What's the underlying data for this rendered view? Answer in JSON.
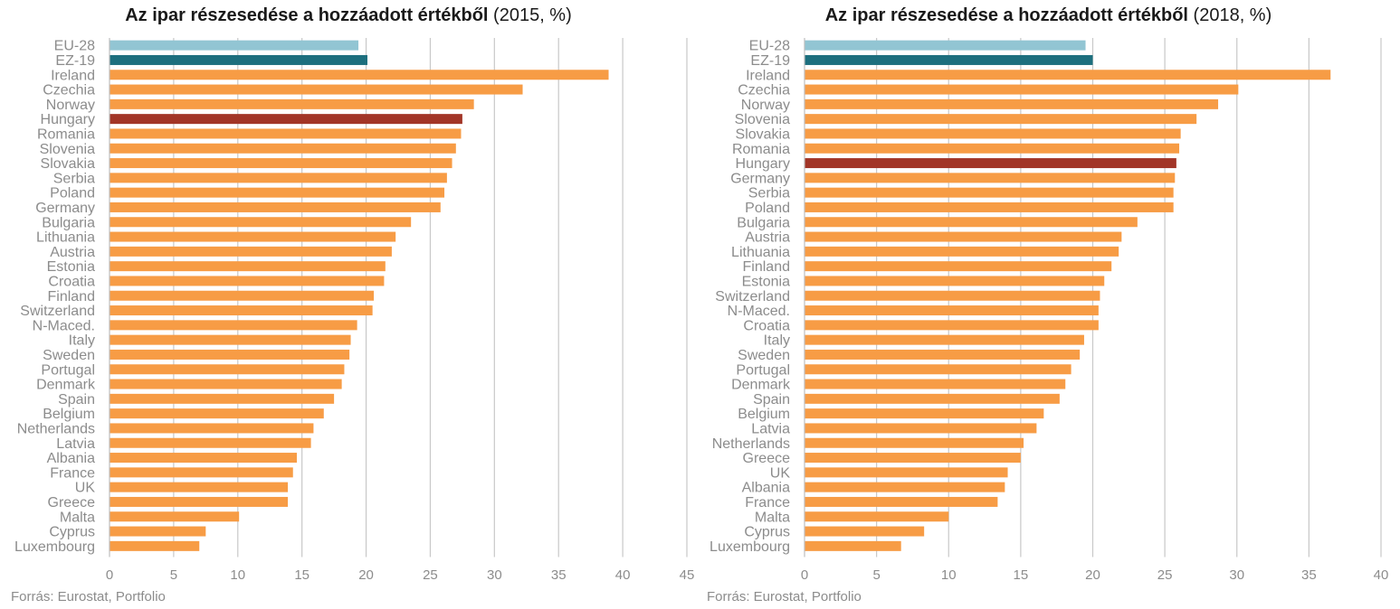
{
  "charts": [
    {
      "title_bold": "Az ipar részesedése a hozzáadott értékből",
      "title_rest": " (2015, %)",
      "source": "Forrás: Eurostat, Portfolio"
    },
    {
      "title_bold": "Az ipar részesedése a hozzáadott értékből",
      "title_rest": " (2018, %)",
      "source": "Forrás: Eurostat, Portfolio"
    }
  ],
  "colors": {
    "eu28": "#92c5d3",
    "ez19": "#1d6f7e",
    "hungary": "#a23527",
    "default": "#f79c45",
    "grid": "#c8c8c8",
    "label": "#8c8c8c"
  },
  "chart_data": [
    {
      "type": "bar",
      "orientation": "horizontal",
      "title": "Az ipar részesedése a hozzáadott értékből (2015, %)",
      "categories": [
        "EU-28",
        "EZ-19",
        "Ireland",
        "Czechia",
        "Norway",
        "Hungary",
        "Romania",
        "Slovenia",
        "Slovakia",
        "Serbia",
        "Poland",
        "Germany",
        "Bulgaria",
        "Lithuania",
        "Austria",
        "Estonia",
        "Croatia",
        "Finland",
        "Switzerland",
        "N-Maced.",
        "Italy",
        "Sweden",
        "Portugal",
        "Denmark",
        "Spain",
        "Belgium",
        "Netherlands",
        "Latvia",
        "Albania",
        "France",
        "UK",
        "Greece",
        "Malta",
        "Cyprus",
        "Luxembourg"
      ],
      "values": [
        19.4,
        20.1,
        38.9,
        32.2,
        28.4,
        27.5,
        27.4,
        27.0,
        26.7,
        26.3,
        26.1,
        25.8,
        23.5,
        22.3,
        22.0,
        21.5,
        21.4,
        20.6,
        20.5,
        19.3,
        18.8,
        18.7,
        18.3,
        18.1,
        17.5,
        16.7,
        15.9,
        15.7,
        14.6,
        14.3,
        13.9,
        13.9,
        10.1,
        7.5,
        7.0
      ],
      "xlim": [
        0,
        45
      ],
      "xticks": [
        0,
        5,
        10,
        15,
        20,
        25,
        30,
        35,
        40,
        45
      ],
      "grid": true
    },
    {
      "type": "bar",
      "orientation": "horizontal",
      "title": "Az ipar részesedése a hozzáadott értékből (2018, %)",
      "categories": [
        "EU-28",
        "EZ-19",
        "Ireland",
        "Czechia",
        "Norway",
        "Slovenia",
        "Slovakia",
        "Romania",
        "Hungary",
        "Germany",
        "Serbia",
        "Poland",
        "Bulgaria",
        "Austria",
        "Lithuania",
        "Finland",
        "Estonia",
        "Switzerland",
        "N-Maced.",
        "Croatia",
        "Italy",
        "Sweden",
        "Portugal",
        "Denmark",
        "Spain",
        "Belgium",
        "Latvia",
        "Netherlands",
        "Greece",
        "UK",
        "Albania",
        "France",
        "Malta",
        "Cyprus",
        "Luxembourg"
      ],
      "values": [
        19.5,
        20.0,
        36.5,
        30.1,
        28.7,
        27.2,
        26.1,
        26.0,
        25.8,
        25.7,
        25.6,
        25.6,
        23.1,
        22.0,
        21.8,
        21.3,
        20.8,
        20.5,
        20.4,
        20.4,
        19.4,
        19.1,
        18.5,
        18.1,
        17.7,
        16.6,
        16.1,
        15.2,
        15.0,
        14.1,
        13.9,
        13.4,
        10.0,
        8.3,
        6.7
      ],
      "xlim": [
        0,
        40
      ],
      "xticks": [
        0,
        5,
        10,
        15,
        20,
        25,
        30,
        35,
        40
      ],
      "grid": true
    }
  ]
}
